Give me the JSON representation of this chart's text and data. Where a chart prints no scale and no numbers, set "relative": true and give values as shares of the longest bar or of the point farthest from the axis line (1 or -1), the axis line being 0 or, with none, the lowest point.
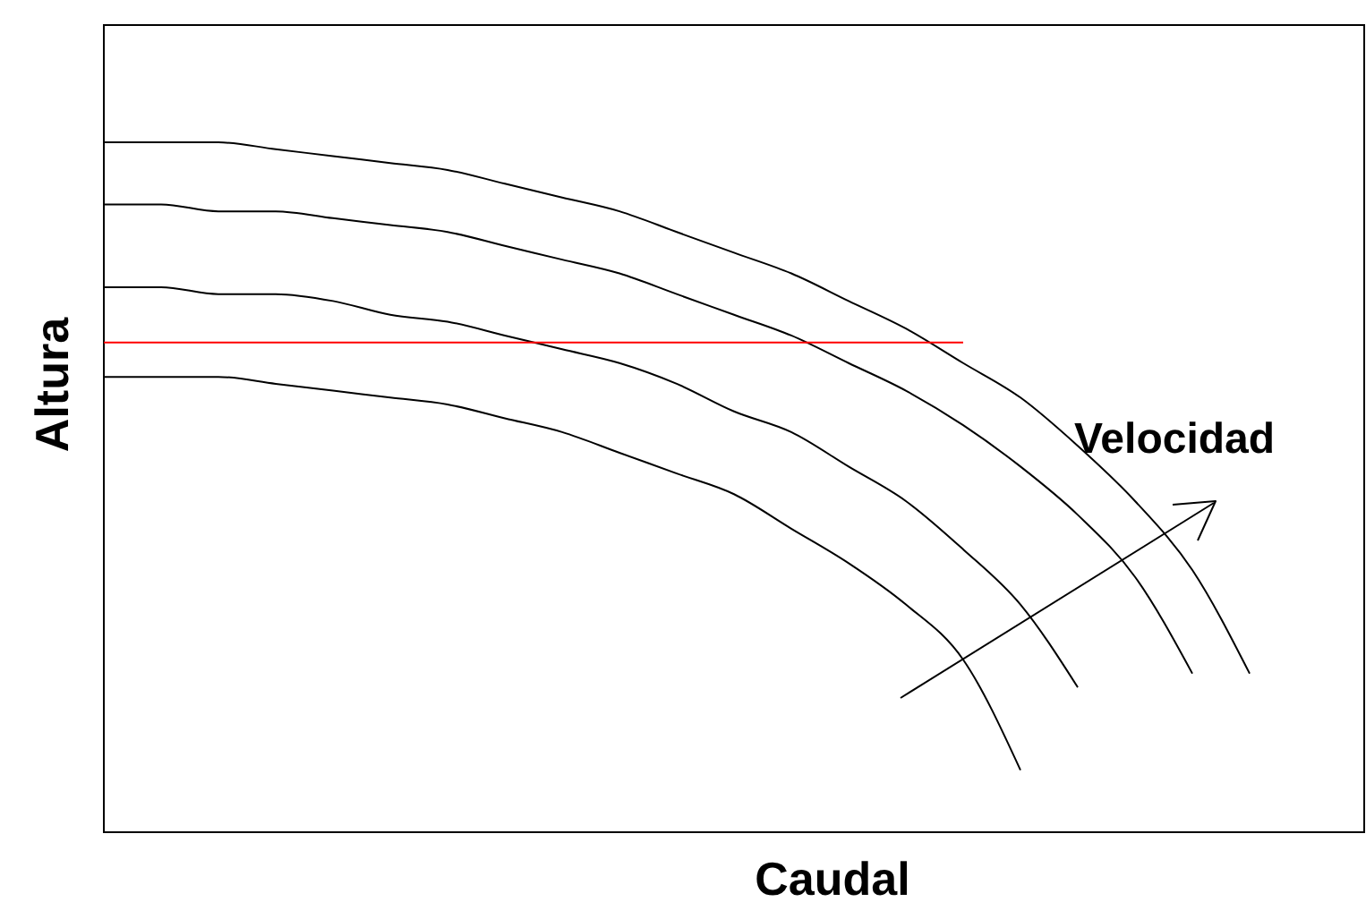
{
  "chart_data": {
    "type": "line",
    "relative": true,
    "xlabel": "Caudal",
    "ylabel": "Altura",
    "categories": [
      null,
      null,
      null,
      null,
      null,
      null,
      null,
      null,
      null,
      null,
      null,
      null,
      null,
      null,
      null,
      null,
      null,
      null,
      null,
      null,
      null,
      null,
      null
    ],
    "series": [
      {
        "color": "#000000",
        "values": [
          1,
          1,
          1,
          0.99,
          0.98,
          0.97,
          0.96,
          0.94,
          0.92,
          0.9,
          0.87,
          0.84,
          0.81,
          0.77,
          0.73,
          0.68,
          0.63,
          0.56,
          0.48,
          0.38,
          0.23,
          null,
          null
        ]
      },
      {
        "color": "#000000",
        "values": [
          0.91,
          0.91,
          0.9,
          0.9,
          0.89,
          0.88,
          0.87,
          0.85,
          0.83,
          0.81,
          0.78,
          0.75,
          0.72,
          0.68,
          0.64,
          0.59,
          0.53,
          0.46,
          0.37,
          0.23,
          null,
          null,
          null
        ]
      },
      {
        "color": "#000000",
        "values": [
          0.79,
          0.79,
          0.78,
          0.78,
          0.77,
          0.75,
          0.74,
          0.72,
          0.7,
          0.68,
          0.65,
          0.61,
          0.58,
          0.53,
          0.48,
          0.41,
          0.33,
          0.21,
          null,
          null,
          null,
          null,
          null
        ]
      },
      {
        "color": "#000000",
        "values": [
          0.66,
          0.66,
          0.66,
          0.65,
          0.64,
          0.63,
          0.62,
          0.6,
          0.58,
          0.55,
          0.52,
          0.49,
          0.44,
          0.39,
          0.33,
          0.25,
          0.09,
          null,
          null,
          null,
          null,
          null,
          null
        ]
      },
      {
        "color": "#ff0000",
        "values": [
          0.71,
          0.71,
          0.71,
          0.71,
          0.71,
          0.71,
          0.71,
          0.71,
          0.71,
          0.71,
          0.71,
          0.71,
          0.71,
          0.71,
          0.71,
          0.71,
          null,
          null,
          null,
          null,
          null,
          null,
          null
        ]
      }
    ],
    "annotations": [
      "Velocidad"
    ]
  }
}
